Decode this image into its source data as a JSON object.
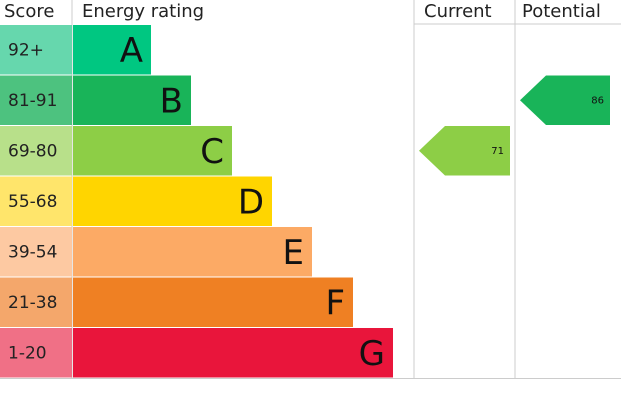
{
  "chart_data": {
    "type": "epc",
    "headers": [
      "Score",
      "Energy rating",
      "Current",
      "Potential"
    ],
    "bands": [
      {
        "score": "92+",
        "letter": "A",
        "color": "#00c781",
        "score_color": "#66d7ad"
      },
      {
        "score": "81-91",
        "letter": "B",
        "color": "#19b459",
        "score_color": "#4dc27f"
      },
      {
        "score": "69-80",
        "letter": "C",
        "color": "#8dce46",
        "score_color": "#b8e08a"
      },
      {
        "score": "55-68",
        "letter": "D",
        "color": "#ffd500",
        "score_color": "#ffe56b"
      },
      {
        "score": "39-54",
        "letter": "E",
        "color": "#fcaa65",
        "score_color": "#fdc9a2"
      },
      {
        "score": "21-38",
        "letter": "F",
        "color": "#ef8023",
        "score_color": "#f4a76b"
      },
      {
        "score": "1-20",
        "letter": "G",
        "color": "#e9153b",
        "score_color": "#f07086"
      }
    ],
    "current": 71,
    "potential": 86
  }
}
